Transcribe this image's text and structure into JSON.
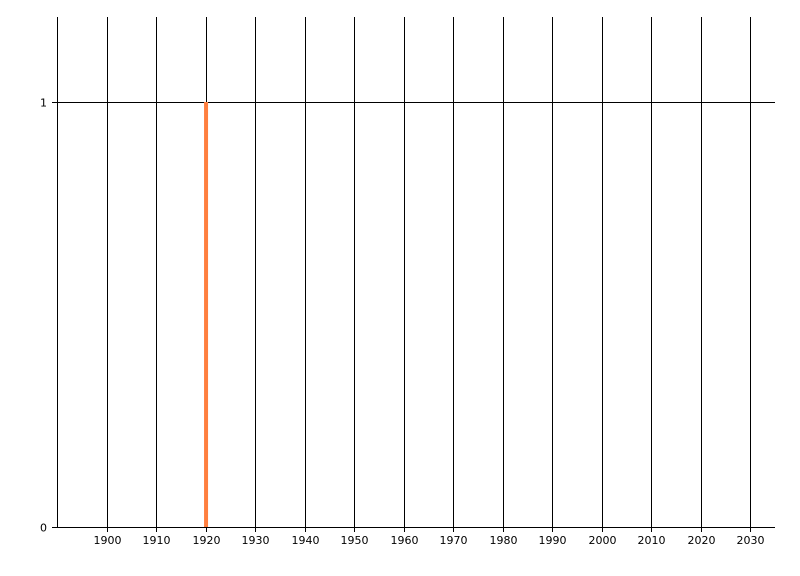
{
  "chart_data": {
    "type": "bar",
    "title": "",
    "xlabel": "",
    "ylabel": "",
    "x": [
      1920
    ],
    "values": [
      1
    ],
    "xlim": [
      1890,
      2035
    ],
    "ylim": [
      0,
      1.2
    ],
    "x_ticks": [
      "1900",
      "1910",
      "1920",
      "1930",
      "1940",
      "1950",
      "1960",
      "1970",
      "1980",
      "1990",
      "2000",
      "2010",
      "2020",
      "2030"
    ],
    "y_ticks": [
      "0",
      "1"
    ],
    "grid": {
      "vertical": true,
      "horizontal": true
    },
    "bar_color": "#FF7F3F",
    "grid_color": "#000000"
  }
}
